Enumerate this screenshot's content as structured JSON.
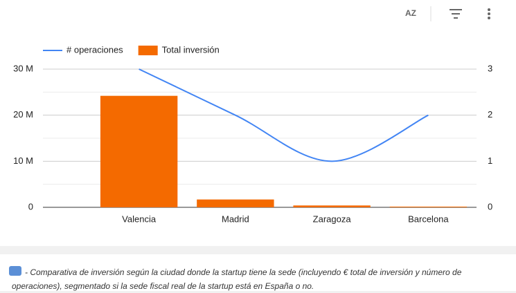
{
  "toolbar": {
    "sort_label": "AZ"
  },
  "chart_data": {
    "type": "bar",
    "categories": [
      "Valencia",
      "Madrid",
      "Zaragoza",
      "Barcelona"
    ],
    "series": [
      {
        "name": "# operaciones",
        "type": "line",
        "axis": "y2",
        "color": "#4285f4",
        "values": [
          3,
          2,
          1,
          2
        ]
      },
      {
        "name": "Total inversión",
        "type": "bar",
        "color": "#f46a00",
        "values": [
          24200000,
          1700000,
          400000,
          150000
        ]
      }
    ],
    "ylim": [
      0,
      30000000
    ],
    "yticks": [
      {
        "value": 0,
        "label": "0"
      },
      {
        "value": 10000000,
        "label": "10 M"
      },
      {
        "value": 20000000,
        "label": "20 M"
      },
      {
        "value": 30000000,
        "label": "30 M"
      }
    ],
    "y2lim": [
      0,
      3
    ],
    "y2ticks": [
      0,
      1,
      2,
      3
    ],
    "grid": true,
    "legend": "top"
  },
  "caption": "- Comparativa de inversión según la ciudad donde la startup tiene la sede (incluyendo € total de inversión y número de operaciones), segmentado si la sede fiscal real de la startup está en España o no."
}
